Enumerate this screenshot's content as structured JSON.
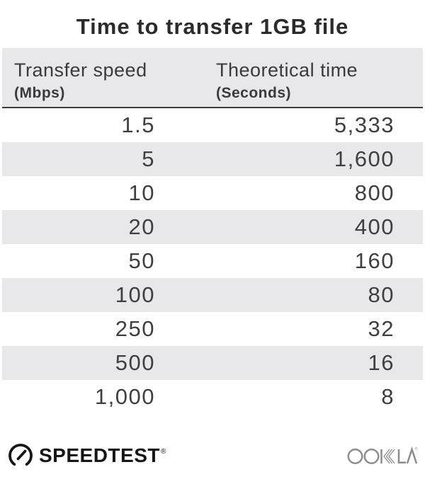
{
  "title": "Time to transfer 1GB file",
  "table": {
    "columns": [
      {
        "label": "Transfer speed",
        "unit": "(Mbps)"
      },
      {
        "label": "Theoretical time",
        "unit": "(Seconds)"
      }
    ],
    "rows": [
      [
        "1.5",
        "5,333"
      ],
      [
        "5",
        "1,600"
      ],
      [
        "10",
        "800"
      ],
      [
        "20",
        "400"
      ],
      [
        "50",
        "160"
      ],
      [
        "100",
        "80"
      ],
      [
        "250",
        "32"
      ],
      [
        "500",
        "16"
      ],
      [
        "1,000",
        "8"
      ]
    ]
  },
  "chart_data": {
    "type": "table",
    "title": "Time to transfer 1GB file",
    "columns": [
      "Transfer speed (Mbps)",
      "Theoretical time (Seconds)"
    ],
    "rows": [
      [
        1.5,
        5333
      ],
      [
        5,
        1600
      ],
      [
        10,
        800
      ],
      [
        20,
        400
      ],
      [
        50,
        160
      ],
      [
        100,
        80
      ],
      [
        250,
        32
      ],
      [
        500,
        16
      ],
      [
        1000,
        8
      ]
    ],
    "layout": {
      "striped": true,
      "value_align": "right",
      "header_rule": true
    }
  },
  "footer": {
    "speedtest_label": "SPEEDTEST",
    "speedtest_mark": "®",
    "speedtest_icon": "gauge-icon",
    "ookla_label": "OOKLA",
    "ookla_mark": "®"
  },
  "colors": {
    "stripe": "#e8e8eb",
    "header_bg": "#e8e8eb",
    "header_rule": "#3c3c3c",
    "title_text": "#2b2b2b",
    "cell_text": "#3f3f3f",
    "speedtest_black": "#161616",
    "ookla_gray": "#8d8d8d"
  }
}
